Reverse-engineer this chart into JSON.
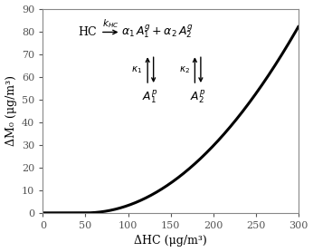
{
  "xlim": [
    0,
    300
  ],
  "ylim": [
    0,
    90
  ],
  "xticks": [
    0,
    50,
    100,
    150,
    200,
    250,
    300
  ],
  "yticks": [
    0,
    10,
    20,
    30,
    40,
    50,
    60,
    70,
    80,
    90
  ],
  "xlabel": "ΔHC (μg/m³)",
  "ylabel": "ΔM₀ (μg/m³)",
  "curve_color": "#000000",
  "curve_lw": 2.2,
  "x_threshold": 50,
  "background_color": "#ffffff",
  "figsize": [
    3.46,
    2.78
  ],
  "dpi": 100,
  "curve_a": 0.001316,
  "curve_b": 2.0,
  "note": "y = a*(x-50)^2 gives slight upward curve; at x=300 y=82, at x=100 y=3.3"
}
